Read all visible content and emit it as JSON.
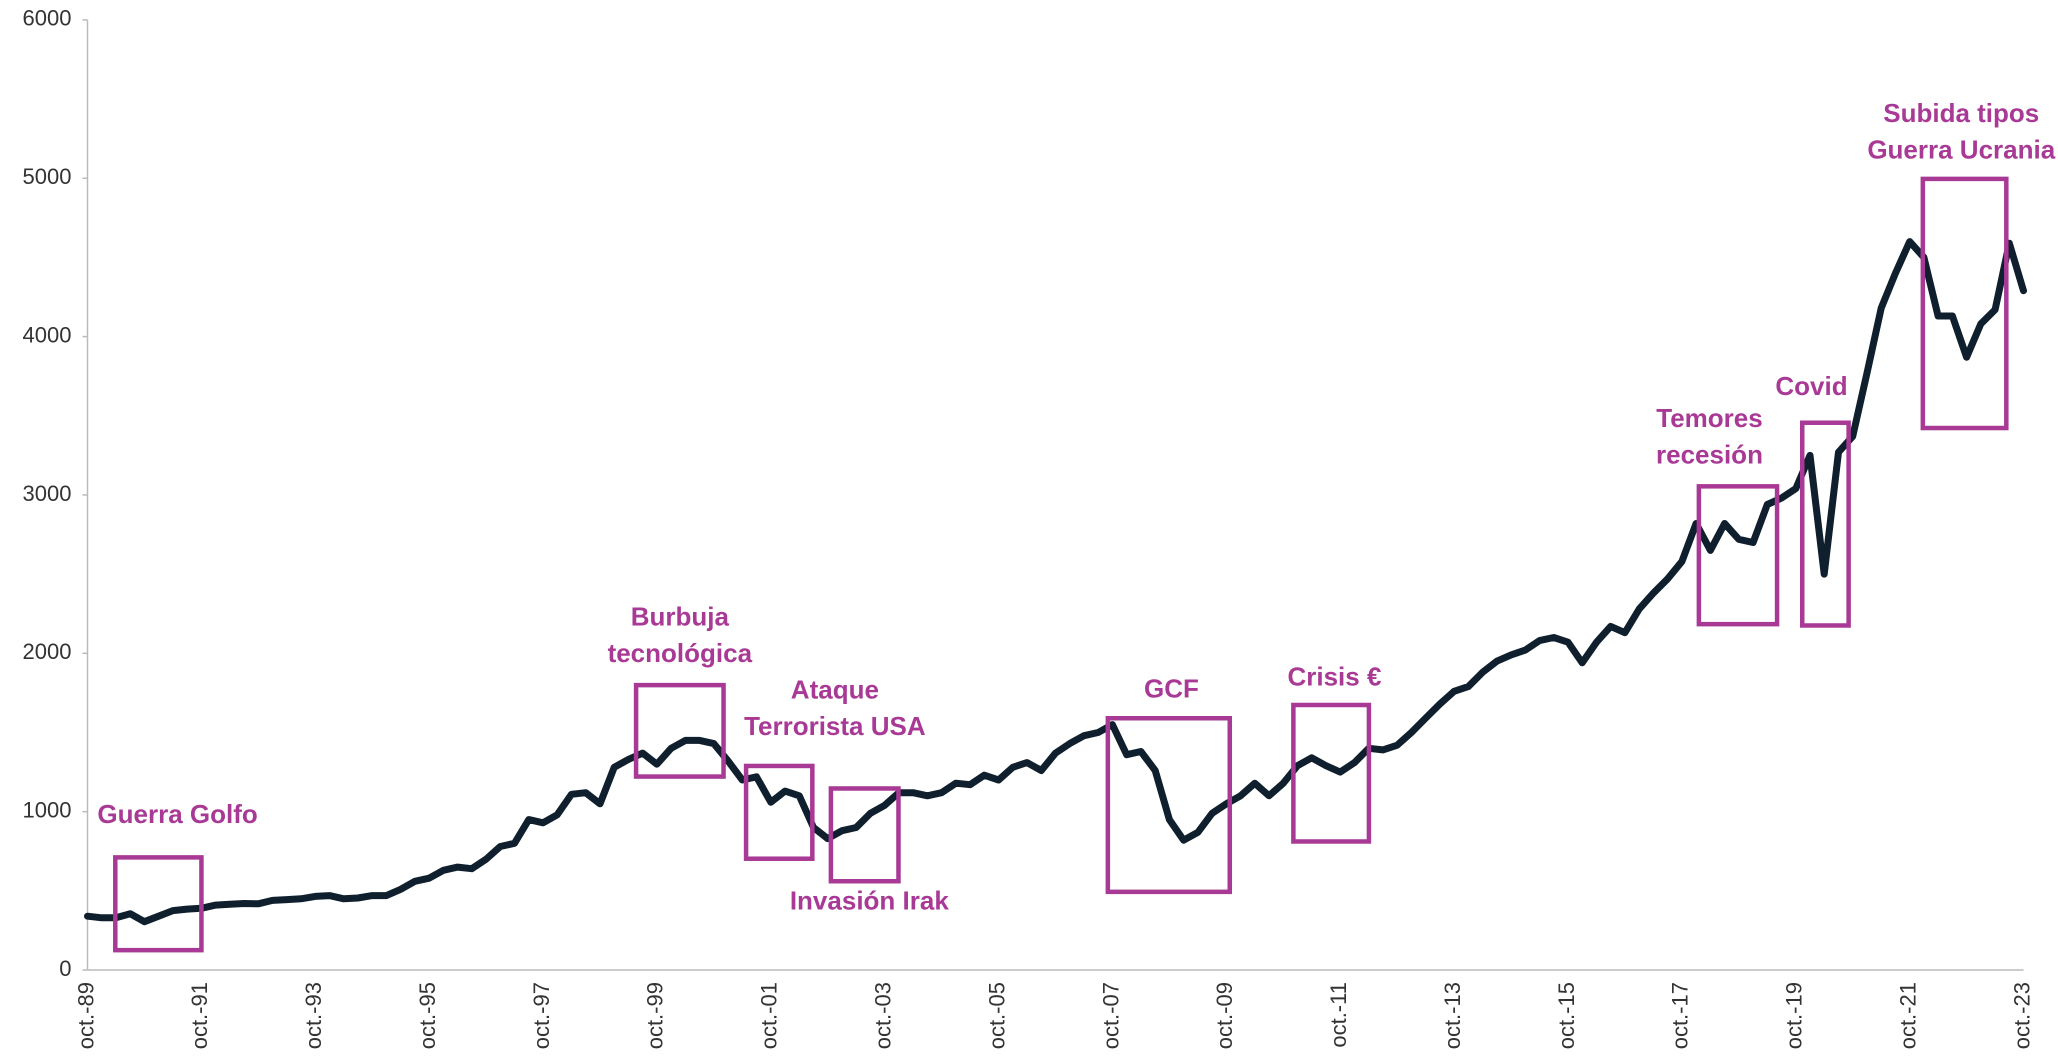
{
  "chart_data": {
    "type": "line",
    "categories": [
      "oct.-89",
      null,
      null,
      null,
      null,
      null,
      null,
      null,
      "oct.-91",
      null,
      null,
      null,
      null,
      null,
      null,
      null,
      "oct.-93",
      null,
      null,
      null,
      null,
      null,
      null,
      null,
      "oct.-95",
      null,
      null,
      null,
      null,
      null,
      null,
      null,
      "oct.-97",
      null,
      null,
      null,
      null,
      null,
      null,
      null,
      "oct.-99",
      null,
      null,
      null,
      null,
      null,
      null,
      null,
      "oct.-01",
      null,
      null,
      null,
      null,
      null,
      null,
      null,
      "oct.-03",
      null,
      null,
      null,
      null,
      null,
      null,
      null,
      "oct.-05",
      null,
      null,
      null,
      null,
      null,
      null,
      null,
      "oct.-07",
      null,
      null,
      null,
      null,
      null,
      null,
      null,
      "oct.-09",
      null,
      null,
      null,
      null,
      null,
      null,
      null,
      "oct.-11",
      null,
      null,
      null,
      null,
      null,
      null,
      null,
      "oct.-13",
      null,
      null,
      null,
      null,
      null,
      null,
      null,
      "oct.-15",
      null,
      null,
      null,
      null,
      null,
      null,
      null,
      "oct.-17",
      null,
      null,
      null,
      null,
      null,
      null,
      null,
      "oct.-19",
      null,
      null,
      null,
      null,
      null,
      null,
      null,
      "oct.-21",
      null,
      null,
      null,
      null,
      null,
      null,
      null,
      "oct.-23"
    ],
    "values": [
      340,
      330,
      330,
      356,
      305,
      340,
      375,
      385,
      390,
      410,
      415,
      420,
      418,
      440,
      445,
      450,
      465,
      470,
      450,
      455,
      470,
      470,
      510,
      560,
      580,
      630,
      650,
      640,
      700,
      780,
      800,
      950,
      930,
      980,
      1110,
      1120,
      1050,
      1280,
      1330,
      1370,
      1300,
      1400,
      1450,
      1450,
      1430,
      1320,
      1200,
      1220,
      1060,
      1130,
      1100,
      900,
      830,
      880,
      900,
      990,
      1040,
      1120,
      1120,
      1100,
      1120,
      1180,
      1170,
      1230,
      1200,
      1280,
      1310,
      1260,
      1370,
      1430,
      1480,
      1500,
      1550,
      1360,
      1380,
      1260,
      950,
      820,
      870,
      990,
      1050,
      1100,
      1180,
      1100,
      1180,
      1290,
      1340,
      1290,
      1250,
      1310,
      1400,
      1390,
      1420,
      1500,
      1590,
      1680,
      1760,
      1790,
      1880,
      1950,
      1990,
      2020,
      2080,
      2100,
      2070,
      1940,
      2070,
      2170,
      2130,
      2280,
      2380,
      2470,
      2580,
      2820,
      2650,
      2820,
      2720,
      2700,
      2940,
      2980,
      3040,
      3250,
      2500,
      3270,
      3370,
      3770,
      4180,
      4400,
      4600,
      4500,
      4130,
      4130,
      3870,
      4080,
      4170,
      4590,
      4290
    ],
    "color": "#0f1f2d",
    "ylim": [
      0,
      6000
    ],
    "yticks": [
      0,
      1000,
      2000,
      3000,
      4000,
      5000,
      6000
    ],
    "grid": false,
    "annotation_color": "#a83a96",
    "annotations": [
      {
        "lines": [
          "Guerra Golfo"
        ]
      },
      {
        "lines": [
          "Burbuja",
          "tecnológica"
        ]
      },
      {
        "lines": [
          "Ataque",
          "Terrorista USA"
        ]
      },
      {
        "lines": [
          "Invasión Irak"
        ]
      },
      {
        "lines": [
          "GCF"
        ]
      },
      {
        "lines": [
          "Crisis €"
        ]
      },
      {
        "lines": [
          "Temores",
          "recesión"
        ]
      },
      {
        "lines": [
          "Covid"
        ]
      },
      {
        "lines": [
          "Subida tipos",
          "Guerra Ucrania"
        ]
      }
    ]
  }
}
